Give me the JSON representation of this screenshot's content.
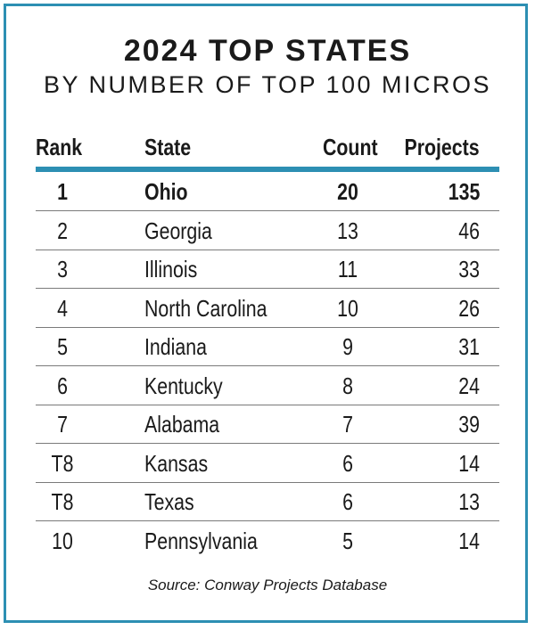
{
  "title": "2024 TOP STATES",
  "subtitle": "BY NUMBER OF TOP 100 MICROS",
  "columns": {
    "rank": "Rank",
    "state": "State",
    "count": "Count",
    "projects": "Projects"
  },
  "rows": [
    {
      "rank": "1",
      "state": "Ohio",
      "count": "20",
      "projects": "135"
    },
    {
      "rank": "2",
      "state": "Georgia",
      "count": "13",
      "projects": "46"
    },
    {
      "rank": "3",
      "state": "Illinois",
      "count": "11",
      "projects": "33"
    },
    {
      "rank": "4",
      "state": "North Carolina",
      "count": "10",
      "projects": "26"
    },
    {
      "rank": "5",
      "state": "Indiana",
      "count": "9",
      "projects": "31"
    },
    {
      "rank": "6",
      "state": "Kentucky",
      "count": "8",
      "projects": "24"
    },
    {
      "rank": "7",
      "state": "Alabama",
      "count": "7",
      "projects": "39"
    },
    {
      "rank": "T8",
      "state": "Kansas",
      "count": "6",
      "projects": "14"
    },
    {
      "rank": "T8",
      "state": "Texas",
      "count": "6",
      "projects": "13"
    },
    {
      "rank": "10",
      "state": "Pennsylvania",
      "count": "5",
      "projects": "14"
    }
  ],
  "source": "Source: Conway Projects Database",
  "colors": {
    "accent": "#2d8fb3",
    "rule": "#7a7a7a",
    "text": "#1a1a1a"
  }
}
